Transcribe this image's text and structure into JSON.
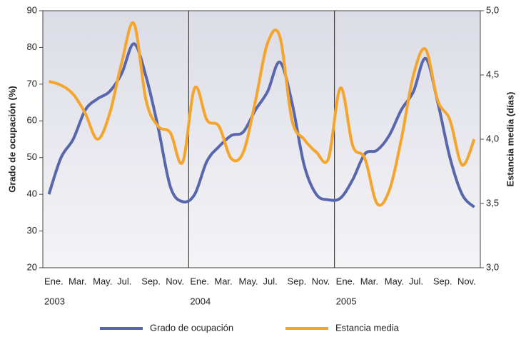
{
  "chart_data": {
    "type": "line",
    "categories": [
      "Ene.",
      null,
      "Mar.",
      null,
      "May.",
      null,
      "Jul.",
      null,
      "Sep.",
      null,
      "Nov.",
      null,
      "Ene.",
      null,
      "Mar.",
      null,
      "May.",
      null,
      "Jul.",
      null,
      "Sep.",
      null,
      "Nov.",
      null,
      "Ene.",
      null,
      "Mar.",
      null,
      "May.",
      null,
      "Jul.",
      null,
      "Sep.",
      null,
      "Nov.",
      null
    ],
    "year_labels": [
      "2003",
      "2004",
      "2005"
    ],
    "ylabel": "Grado de ocupación (%)",
    "y2label": "Estancia media (días)",
    "ylim": [
      20,
      90
    ],
    "yticks": [
      20,
      30,
      40,
      50,
      60,
      70,
      80,
      90
    ],
    "y2lim": [
      3,
      5
    ],
    "y2ticks": [
      {
        "value": 3,
        "label": "3,0"
      },
      {
        "value": 3.5,
        "label": "3,5"
      },
      {
        "value": 4,
        "label": "4,0"
      },
      {
        "value": 4.5,
        "label": "4,5"
      },
      {
        "value": 5,
        "label": "5,0"
      }
    ],
    "series": [
      {
        "name": "Grado de ocupación",
        "color": "#5866ac",
        "values": [
          40,
          50,
          55,
          63,
          66,
          68,
          73,
          81,
          72,
          58,
          42,
          38,
          40,
          49,
          53,
          56,
          57,
          63,
          68,
          76,
          65,
          48,
          40,
          38.5,
          39,
          44,
          51,
          52,
          56,
          63,
          68,
          77,
          65,
          50,
          40,
          36.5
        ]
      },
      {
        "name": "Estancia media",
        "color": "#f5a52c",
        "axis": "y2",
        "values": [
          4.45,
          4.42,
          4.35,
          4.2,
          4.0,
          4.2,
          4.6,
          4.9,
          4.3,
          4.1,
          4.05,
          3.82,
          4.4,
          4.15,
          4.1,
          3.85,
          3.9,
          4.3,
          4.75,
          4.8,
          4.15,
          4.0,
          3.9,
          3.85,
          4.4,
          3.95,
          3.85,
          3.5,
          3.6,
          4.0,
          4.5,
          4.7,
          4.3,
          4.15,
          3.8,
          4.0
        ]
      }
    ]
  }
}
